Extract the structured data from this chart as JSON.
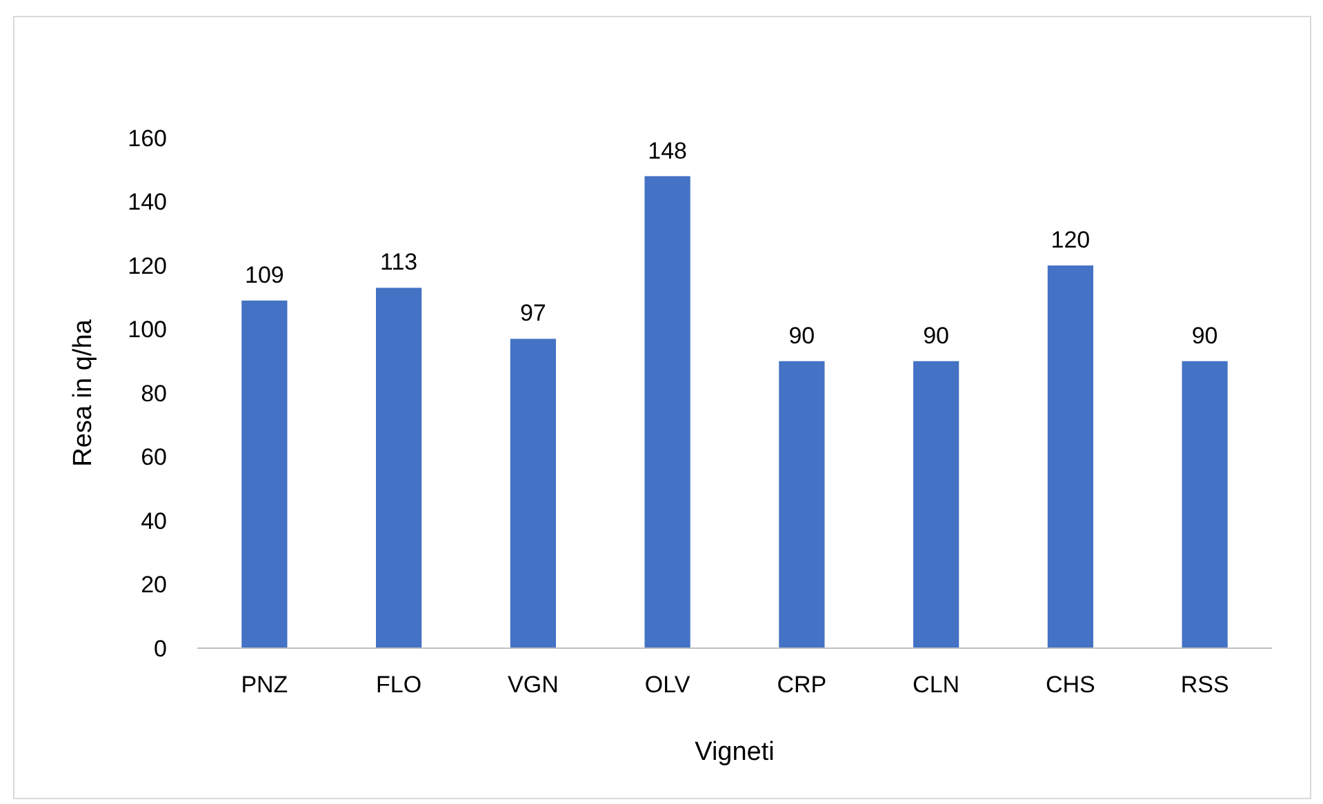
{
  "chart_data": {
    "type": "bar",
    "xlabel": "Vigneti",
    "ylabel": "Resa in q/ha",
    "categories": [
      "PNZ",
      "FLO",
      "VGN",
      "OLV",
      "CRP",
      "CLN",
      "CHS",
      "RSS"
    ],
    "values": [
      109,
      113,
      97,
      148,
      90,
      90,
      120,
      90
    ],
    "color": "#4472c4",
    "ylim": [
      0,
      160
    ],
    "yticks": [
      0,
      20,
      40,
      60,
      80,
      100,
      120,
      140,
      160
    ],
    "grid": false,
    "data_labels": true
  }
}
